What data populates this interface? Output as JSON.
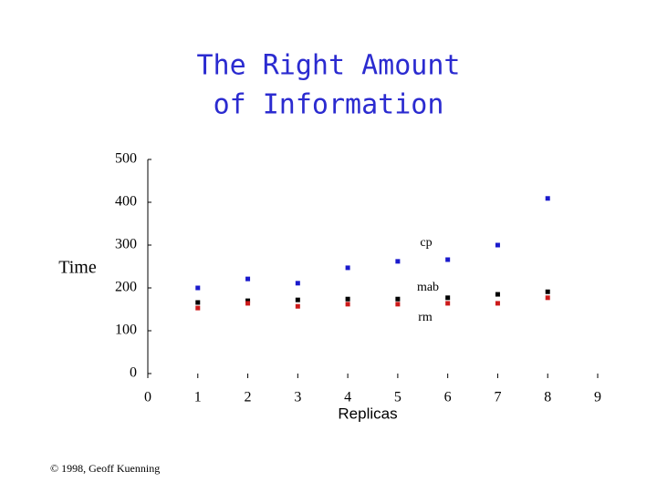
{
  "title": [
    "The Right Amount",
    "of Information"
  ],
  "footer": "© 1998, Geoff Kuenning",
  "chart_data": {
    "type": "scatter",
    "x_label": "Replicas",
    "y_label": "Time",
    "xlim": [
      0,
      9
    ],
    "xticks": [
      0,
      1,
      2,
      3,
      4,
      5,
      6,
      7,
      8,
      9
    ],
    "ylim": [
      0,
      500
    ],
    "yticks": [
      0,
      100,
      200,
      300,
      400,
      500
    ],
    "series": [
      {
        "name": "cp",
        "color": "#1a1acc",
        "x": [
          1,
          2,
          3,
          4,
          5,
          6,
          7,
          8
        ],
        "values": [
          200,
          221,
          211,
          247,
          262,
          266,
          300,
          409
        ]
      },
      {
        "name": "mab",
        "color": "#000000",
        "x": [
          1,
          2,
          3,
          4,
          5,
          6,
          7,
          8
        ],
        "values": [
          166,
          170,
          172,
          174,
          174,
          177,
          185,
          191
        ]
      },
      {
        "name": "rm",
        "color": "#cc1a1a",
        "x": [
          1,
          2,
          3,
          4,
          5,
          6,
          7,
          8
        ],
        "values": [
          153,
          164,
          157,
          162,
          162,
          164,
          164,
          177
        ]
      }
    ]
  }
}
